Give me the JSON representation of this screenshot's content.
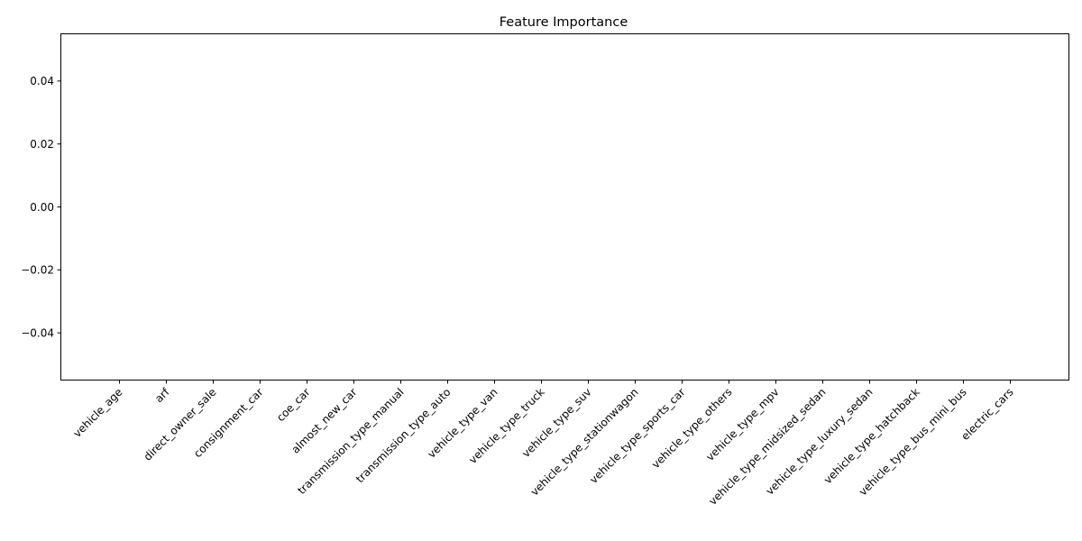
{
  "chart_data": {
    "type": "bar",
    "title": "Feature Importance",
    "xlabel": "",
    "ylabel": "",
    "categories": [
      "vehicle_age",
      "arf",
      "direct_owner_sale",
      "consignment_car",
      "coe_car",
      "almost_new_car",
      "transmission_type_manual",
      "transmission_type_auto",
      "vehicle_type_van",
      "vehicle_type_truck",
      "vehicle_type_suv",
      "vehicle_type_stationwagon",
      "vehicle_type_sports_car",
      "vehicle_type_others",
      "vehicle_type_mpv",
      "vehicle_type_midsized_sedan",
      "vehicle_type_luxury_sedan",
      "vehicle_type_hatchback",
      "vehicle_type_bus_mini_bus",
      "electric_cars"
    ],
    "values": [
      0,
      0,
      0,
      0,
      0,
      0,
      0,
      0,
      0,
      0,
      0,
      0,
      0,
      0,
      0,
      0,
      0,
      0,
      0,
      0
    ],
    "ylim": [
      -0.055,
      0.055
    ],
    "yticks": [
      -0.04,
      -0.02,
      0.0,
      0.02,
      0.04
    ],
    "ytick_labels": [
      "−0.04",
      "−0.02",
      "0.00",
      "0.02",
      "0.04"
    ],
    "grid": false,
    "legend": "none",
    "bar_color": "#1f77b4"
  }
}
